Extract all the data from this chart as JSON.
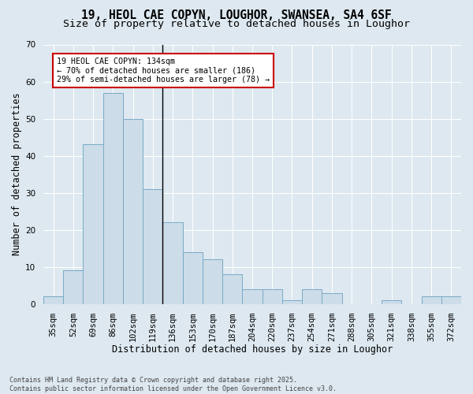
{
  "title1": "19, HEOL CAE COPYN, LOUGHOR, SWANSEA, SA4 6SF",
  "title2": "Size of property relative to detached houses in Loughor",
  "xlabel": "Distribution of detached houses by size in Loughor",
  "ylabel": "Number of detached properties",
  "categories": [
    "35sqm",
    "52sqm",
    "69sqm",
    "86sqm",
    "102sqm",
    "119sqm",
    "136sqm",
    "153sqm",
    "170sqm",
    "187sqm",
    "204sqm",
    "220sqm",
    "237sqm",
    "254sqm",
    "271sqm",
    "288sqm",
    "305sqm",
    "321sqm",
    "338sqm",
    "355sqm",
    "372sqm"
  ],
  "values": [
    2,
    9,
    43,
    57,
    50,
    31,
    22,
    14,
    12,
    8,
    4,
    4,
    1,
    4,
    3,
    0,
    0,
    1,
    0,
    2,
    2
  ],
  "bar_color": "#ccdce8",
  "bar_edge_color": "#7aaac8",
  "highlight_line_color": "#000000",
  "annotation_text": "19 HEOL CAE COPYN: 134sqm\n← 70% of detached houses are smaller (186)\n29% of semi-detached houses are larger (78) →",
  "annotation_box_color": "#ffffff",
  "annotation_box_edge": "#cc0000",
  "ylim": [
    0,
    70
  ],
  "yticks": [
    0,
    10,
    20,
    30,
    40,
    50,
    60,
    70
  ],
  "background_color": "#dde8f0",
  "grid_color": "#ffffff",
  "footer": "Contains HM Land Registry data © Crown copyright and database right 2025.\nContains public sector information licensed under the Open Government Licence v3.0.",
  "title_fontsize": 10.5,
  "subtitle_fontsize": 9.5,
  "axis_label_fontsize": 8.5,
  "tick_fontsize": 7.5,
  "footer_fontsize": 6.0
}
